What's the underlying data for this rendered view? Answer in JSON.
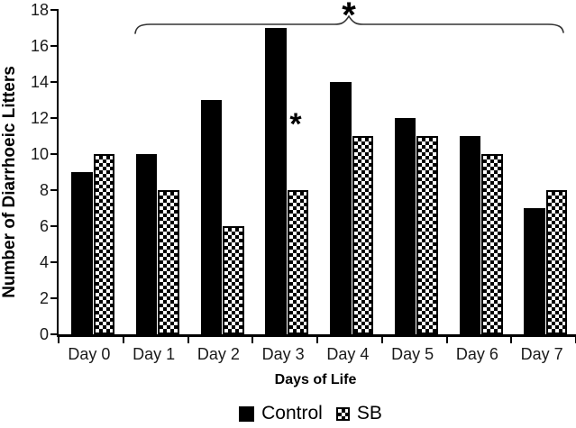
{
  "chart_data": {
    "type": "bar",
    "title": "",
    "xlabel": "Days of Life",
    "ylabel": "Number of Diarrhoeic Litters",
    "ylim": [
      0,
      18
    ],
    "yticks": [
      0,
      2,
      4,
      6,
      8,
      10,
      12,
      14,
      16,
      18
    ],
    "categories": [
      "Day 0",
      "Day 1",
      "Day 2",
      "Day 3",
      "Day 4",
      "Day 5",
      "Day 6",
      "Day 7"
    ],
    "series": [
      {
        "name": "Control",
        "pattern": "solid",
        "color": "#000000",
        "values": [
          9,
          10,
          13,
          17,
          14,
          12,
          11,
          7
        ]
      },
      {
        "name": "SB",
        "pattern": "checkerboard",
        "color": "#000000",
        "values": [
          10,
          8,
          6,
          8,
          11,
          11,
          10,
          8
        ]
      }
    ],
    "grid": false,
    "legend_position": "bottom",
    "annotations": [
      {
        "symbol": "*",
        "type": "brace-span",
        "span_categories": [
          "Day 1",
          "Day 7"
        ]
      },
      {
        "symbol": "*",
        "type": "point",
        "category": "Day 3",
        "series": "SB"
      }
    ]
  },
  "colors": {
    "bar": "#000000",
    "axis": "#000000",
    "brace": "#333333",
    "background": "#ffffff"
  }
}
